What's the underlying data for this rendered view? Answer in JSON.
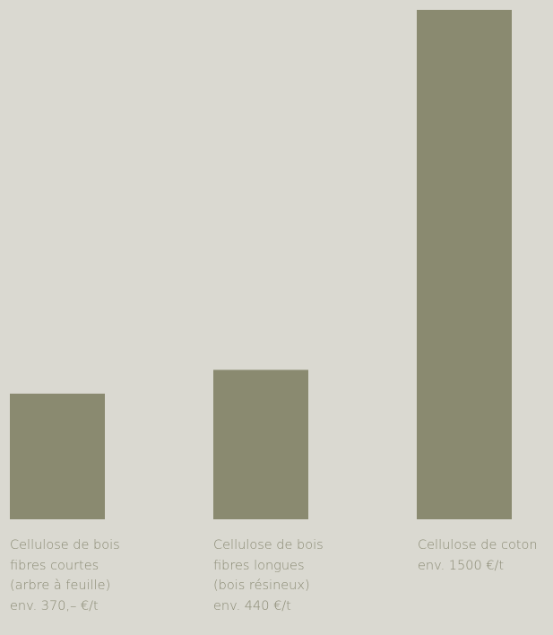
{
  "chart_data": {
    "type": "bar",
    "categories": [
      "Cellulose de bois fibres courtes (arbre à feuille)",
      "Cellulose de bois fibres longues (bois résineux)",
      "Cellulose de coton"
    ],
    "values": [
      370,
      440,
      1500
    ],
    "unit": "€/t",
    "bar_color": "#8a8a70",
    "labels": [
      [
        "Cellulose de bois",
        "fibres courtes",
        "(arbre à feuille)",
        "env. 370,– €/t"
      ],
      [
        "Cellulose de bois",
        "fibres longues",
        "(bois résineux)",
        "env. 440 €/t"
      ],
      [
        "Cellulose de coton",
        "env. 1500 €/t"
      ]
    ],
    "ylim": [
      0,
      1500
    ],
    "grid": false,
    "legend": "none"
  },
  "colors": {
    "background": "#dad9d1",
    "bar": "#8a8a70",
    "text": "#8a8a74"
  }
}
